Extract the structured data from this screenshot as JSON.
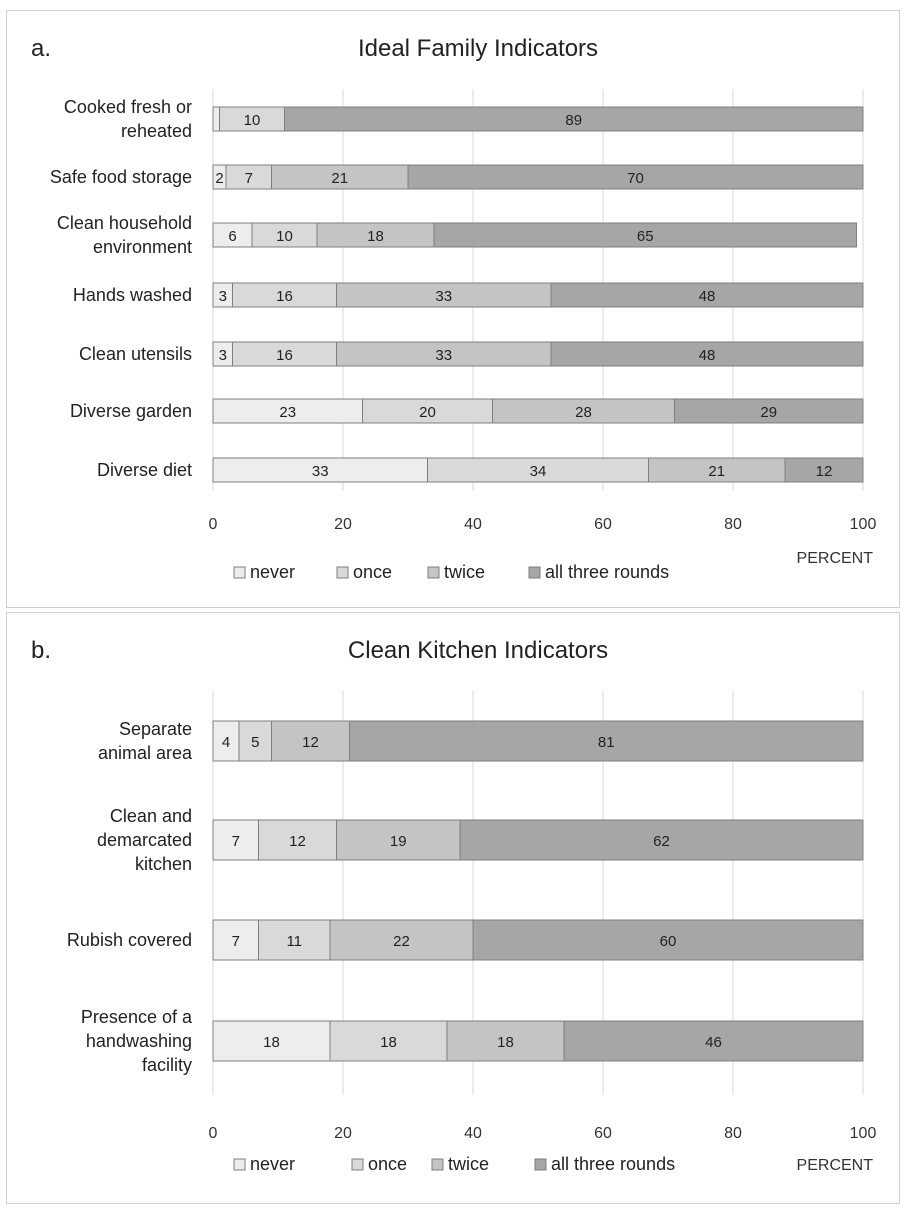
{
  "chart_data": [
    {
      "type": "bar",
      "orientation": "horizontal",
      "stacked": true,
      "panel_label": "a.",
      "title": "Ideal Family Indicators",
      "xlabel": "PERCENT",
      "xlim": [
        0,
        100
      ],
      "xticks": [
        0,
        20,
        40,
        60,
        80,
        100
      ],
      "grid": true,
      "legend_position": "bottom",
      "categories": [
        [
          "Cooked fresh or",
          "reheated"
        ],
        [
          "Safe food storage"
        ],
        [
          "Clean household",
          "environment"
        ],
        [
          "Hands washed"
        ],
        [
          "Clean utensils"
        ],
        [
          "Diverse garden"
        ],
        [
          "Diverse diet"
        ]
      ],
      "series": [
        {
          "name": "never",
          "color": "#ededed",
          "values": [
            1,
            2,
            6,
            3,
            3,
            23,
            33
          ],
          "labels": [
            "",
            "2",
            "6",
            "3",
            "3",
            "23",
            "33"
          ]
        },
        {
          "name": "once",
          "color": "#d9d9d9",
          "values": [
            10,
            7,
            10,
            16,
            16,
            20,
            34
          ],
          "labels": [
            "10",
            "7",
            "10",
            "16",
            "16",
            "20",
            "34"
          ]
        },
        {
          "name": "twice",
          "color": "#c4c4c4",
          "values": [
            0,
            21,
            18,
            33,
            33,
            28,
            21
          ],
          "labels": [
            "",
            "21",
            "18",
            "33",
            "33",
            "28",
            "21"
          ]
        },
        {
          "name": "all three rounds",
          "color": "#a6a6a6",
          "values": [
            89,
            70,
            65,
            48,
            48,
            29,
            12
          ],
          "labels": [
            "89",
            "70",
            "65",
            "48",
            "48",
            "29",
            "12"
          ]
        }
      ]
    },
    {
      "type": "bar",
      "orientation": "horizontal",
      "stacked": true,
      "panel_label": "b.",
      "title": "Clean Kitchen Indicators",
      "xlabel": "PERCENT",
      "xlim": [
        0,
        100
      ],
      "xticks": [
        0,
        20,
        40,
        60,
        80,
        100
      ],
      "grid": true,
      "legend_position": "bottom",
      "categories": [
        [
          "Separate",
          "animal area"
        ],
        [
          "Clean and",
          "demarcated",
          "kitchen"
        ],
        [
          "Rubish covered"
        ],
        [
          "Presence of a",
          "handwashing",
          "facility"
        ]
      ],
      "series": [
        {
          "name": "never",
          "color": "#ededed",
          "values": [
            4,
            7,
            7,
            18
          ],
          "labels": [
            "4",
            "7",
            "7",
            "18"
          ]
        },
        {
          "name": "once",
          "color": "#d9d9d9",
          "values": [
            5,
            12,
            11,
            18
          ],
          "labels": [
            "5",
            "12",
            "11",
            "18"
          ]
        },
        {
          "name": "twice",
          "color": "#c4c4c4",
          "values": [
            12,
            19,
            22,
            18
          ],
          "labels": [
            "12",
            "19",
            "22",
            "18"
          ]
        },
        {
          "name": "all three rounds",
          "color": "#a6a6a6",
          "values": [
            81,
            62,
            60,
            46
          ],
          "labels": [
            "81",
            "62",
            "60",
            "46"
          ]
        }
      ]
    }
  ]
}
